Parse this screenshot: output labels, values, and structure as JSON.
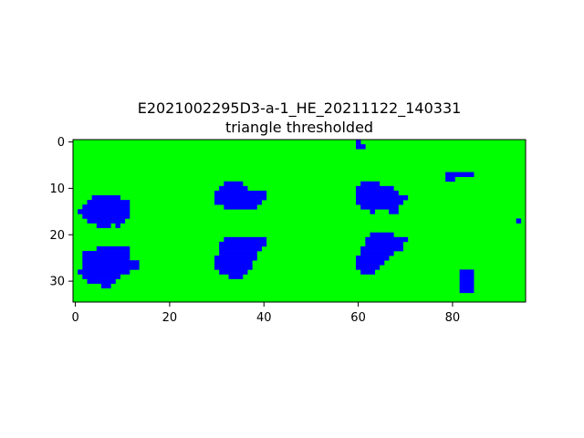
{
  "chart_data": {
    "type": "heatmap",
    "title": "E2021002295D3-a-1_HE_20211122_140331",
    "subtitle": "triangle thresholded",
    "xlabel": "",
    "ylabel": "",
    "image_width": 96,
    "image_height": 35,
    "xlim": [
      -0.5,
      95.5
    ],
    "ylim": [
      34.5,
      -0.5
    ],
    "x_ticks": [
      0,
      20,
      40,
      60,
      80
    ],
    "y_ticks": [
      0,
      10,
      20,
      30
    ],
    "background_color": "#00ff00",
    "foreground_color": "#0000ff",
    "foreground_regions": [
      {
        "row_start": 0,
        "rows": [
          "60-60",
          "60-61"
        ]
      },
      {
        "row_start": 7,
        "rows": [
          "79-84",
          "79-80"
        ]
      },
      {
        "row_start": 9,
        "rows": [
          "32-35",
          "31-36",
          "30-40",
          "30-40",
          "30-39",
          "32-38"
        ]
      },
      {
        "row_start": 9,
        "rows": [
          "61-64",
          "60-67",
          "60-68",
          "60-70",
          "60-69",
          "61-68",
          "63-63,67-68"
        ]
      },
      {
        "row_start": 12,
        "rows": [
          "4-9",
          "3-11",
          "2-11",
          "1-11",
          "2-11",
          "3-10",
          "5-7,9-9"
        ]
      },
      {
        "row_start": 17,
        "rows": [
          "94-94"
        ]
      },
      {
        "row_start": 20,
        "rows": [
          "63-67",
          "62-70",
          "62-69",
          "61-69",
          "61-67",
          "60-66",
          "60-65",
          "60-64",
          "61-63"
        ]
      },
      {
        "row_start": 21,
        "rows": [
          "32-40",
          "31-40",
          "31-39",
          "31-38",
          "30-38",
          "30-37",
          "30-37",
          "31-36",
          "33-35"
        ]
      },
      {
        "row_start": 23,
        "rows": [
          "5-11",
          "2-11",
          "2-11",
          "2-13",
          "2-13",
          "1-11",
          "2-9",
          "3-8",
          "6-7"
        ]
      },
      {
        "row_start": 28,
        "rows": [
          "82-84",
          "82-84",
          "82-84",
          "82-84",
          "82-84"
        ]
      }
    ]
  }
}
